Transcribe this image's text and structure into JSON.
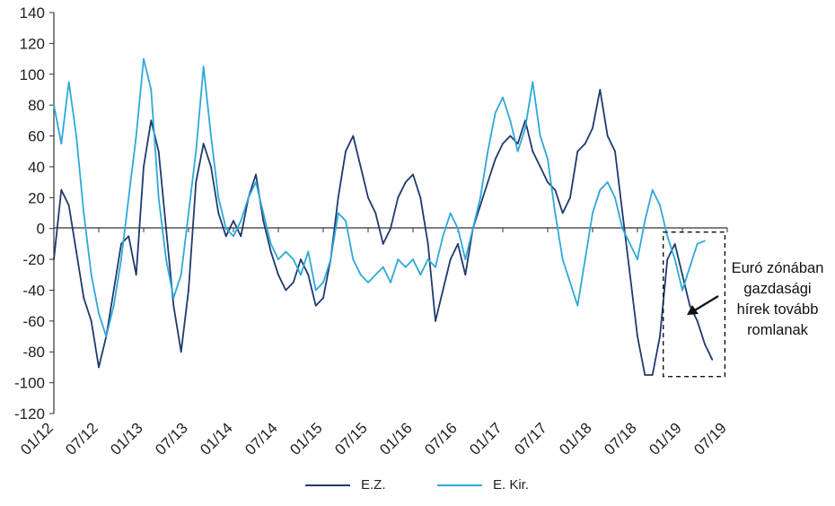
{
  "chart_data": {
    "type": "line",
    "title": "",
    "xlabel": "",
    "ylabel": "",
    "ylim": [
      -120,
      140
    ],
    "yticks": [
      -120,
      -100,
      -80,
      -60,
      -40,
      -20,
      0,
      20,
      40,
      60,
      80,
      100,
      120,
      140
    ],
    "xticks": [
      "01/12",
      "07/12",
      "01/13",
      "07/13",
      "01/14",
      "07/14",
      "01/15",
      "07/15",
      "01/16",
      "07/16",
      "01/17",
      "07/17",
      "01/18",
      "07/18",
      "01/19",
      "07/19"
    ],
    "grid": false,
    "legend": "bottom",
    "series": [
      {
        "name": "E.Z.",
        "color": "#1f3a6e",
        "points": [
          [
            "01/12",
            -20
          ],
          [
            "02/12",
            25
          ],
          [
            "03/12",
            15
          ],
          [
            "04/12",
            -15
          ],
          [
            "05/12",
            -45
          ],
          [
            "06/12",
            -60
          ],
          [
            "07/12",
            -90
          ],
          [
            "08/12",
            -70
          ],
          [
            "09/12",
            -40
          ],
          [
            "10/12",
            -10
          ],
          [
            "11/12",
            -5
          ],
          [
            "12/12",
            -30
          ],
          [
            "01/13",
            40
          ],
          [
            "02/13",
            70
          ],
          [
            "03/13",
            50
          ],
          [
            "04/13",
            0
          ],
          [
            "05/13",
            -50
          ],
          [
            "06/13",
            -80
          ],
          [
            "07/13",
            -40
          ],
          [
            "08/13",
            30
          ],
          [
            "09/13",
            55
          ],
          [
            "10/13",
            40
          ],
          [
            "11/13",
            10
          ],
          [
            "12/13",
            -5
          ],
          [
            "01/14",
            5
          ],
          [
            "02/14",
            -5
          ],
          [
            "03/14",
            20
          ],
          [
            "04/14",
            35
          ],
          [
            "05/14",
            5
          ],
          [
            "06/14",
            -15
          ],
          [
            "07/14",
            -30
          ],
          [
            "08/14",
            -40
          ],
          [
            "09/14",
            -35
          ],
          [
            "10/14",
            -20
          ],
          [
            "11/14",
            -30
          ],
          [
            "12/14",
            -50
          ],
          [
            "01/15",
            -45
          ],
          [
            "02/15",
            -20
          ],
          [
            "03/15",
            20
          ],
          [
            "04/15",
            50
          ],
          [
            "05/15",
            60
          ],
          [
            "06/15",
            40
          ],
          [
            "07/15",
            20
          ],
          [
            "08/15",
            10
          ],
          [
            "09/15",
            -10
          ],
          [
            "10/15",
            0
          ],
          [
            "11/15",
            20
          ],
          [
            "12/15",
            30
          ],
          [
            "01/16",
            35
          ],
          [
            "02/16",
            20
          ],
          [
            "03/16",
            -10
          ],
          [
            "04/16",
            -60
          ],
          [
            "05/16",
            -40
          ],
          [
            "06/16",
            -20
          ],
          [
            "07/16",
            -10
          ],
          [
            "08/16",
            -30
          ],
          [
            "09/16",
            0
          ],
          [
            "10/16",
            15
          ],
          [
            "11/16",
            30
          ],
          [
            "12/16",
            45
          ],
          [
            "01/17",
            55
          ],
          [
            "02/17",
            60
          ],
          [
            "03/17",
            55
          ],
          [
            "04/17",
            70
          ],
          [
            "05/17",
            50
          ],
          [
            "06/17",
            40
          ],
          [
            "07/17",
            30
          ],
          [
            "08/17",
            25
          ],
          [
            "09/17",
            10
          ],
          [
            "10/17",
            20
          ],
          [
            "11/17",
            50
          ],
          [
            "12/17",
            55
          ],
          [
            "01/18",
            65
          ],
          [
            "02/18",
            90
          ],
          [
            "03/18",
            60
          ],
          [
            "04/18",
            50
          ],
          [
            "05/18",
            10
          ],
          [
            "06/18",
            -30
          ],
          [
            "07/18",
            -70
          ],
          [
            "08/18",
            -95
          ],
          [
            "09/18",
            -95
          ],
          [
            "10/18",
            -70
          ],
          [
            "11/18",
            -20
          ],
          [
            "12/18",
            -10
          ],
          [
            "01/19",
            -30
          ],
          [
            "02/19",
            -50
          ],
          [
            "03/19",
            -60
          ],
          [
            "04/19",
            -75
          ],
          [
            "05/19",
            -85
          ]
        ]
      },
      {
        "name": "E. Kir.",
        "color": "#2ea8da",
        "points": [
          [
            "01/12",
            80
          ],
          [
            "02/12",
            55
          ],
          [
            "03/12",
            95
          ],
          [
            "04/12",
            60
          ],
          [
            "05/12",
            10
          ],
          [
            "06/12",
            -30
          ],
          [
            "07/12",
            -55
          ],
          [
            "08/12",
            -70
          ],
          [
            "09/12",
            -50
          ],
          [
            "10/12",
            -20
          ],
          [
            "11/12",
            20
          ],
          [
            "12/12",
            60
          ],
          [
            "01/13",
            110
          ],
          [
            "02/13",
            90
          ],
          [
            "03/13",
            20
          ],
          [
            "04/13",
            -20
          ],
          [
            "05/13",
            -45
          ],
          [
            "06/13",
            -30
          ],
          [
            "07/13",
            10
          ],
          [
            "08/13",
            50
          ],
          [
            "09/13",
            105
          ],
          [
            "10/13",
            60
          ],
          [
            "11/13",
            20
          ],
          [
            "12/13",
            0
          ],
          [
            "01/14",
            -5
          ],
          [
            "02/14",
            5
          ],
          [
            "03/14",
            20
          ],
          [
            "04/14",
            30
          ],
          [
            "05/14",
            10
          ],
          [
            "06/14",
            -10
          ],
          [
            "07/14",
            -20
          ],
          [
            "08/14",
            -15
          ],
          [
            "09/14",
            -20
          ],
          [
            "10/14",
            -30
          ],
          [
            "11/14",
            -15
          ],
          [
            "12/14",
            -40
          ],
          [
            "01/15",
            -35
          ],
          [
            "02/15",
            -20
          ],
          [
            "03/15",
            10
          ],
          [
            "04/15",
            5
          ],
          [
            "05/15",
            -20
          ],
          [
            "06/15",
            -30
          ],
          [
            "07/15",
            -35
          ],
          [
            "08/15",
            -30
          ],
          [
            "09/15",
            -25
          ],
          [
            "10/15",
            -35
          ],
          [
            "11/15",
            -20
          ],
          [
            "12/15",
            -25
          ],
          [
            "01/16",
            -20
          ],
          [
            "02/16",
            -30
          ],
          [
            "03/16",
            -20
          ],
          [
            "04/16",
            -25
          ],
          [
            "05/16",
            -5
          ],
          [
            "06/16",
            10
          ],
          [
            "07/16",
            0
          ],
          [
            "08/16",
            -20
          ],
          [
            "09/16",
            0
          ],
          [
            "10/16",
            20
          ],
          [
            "11/16",
            50
          ],
          [
            "12/16",
            75
          ],
          [
            "01/17",
            85
          ],
          [
            "02/17",
            70
          ],
          [
            "03/17",
            50
          ],
          [
            "04/17",
            65
          ],
          [
            "05/17",
            95
          ],
          [
            "06/17",
            60
          ],
          [
            "07/17",
            45
          ],
          [
            "08/17",
            10
          ],
          [
            "09/17",
            -20
          ],
          [
            "10/17",
            -35
          ],
          [
            "11/17",
            -50
          ],
          [
            "12/17",
            -20
          ],
          [
            "01/18",
            10
          ],
          [
            "02/18",
            25
          ],
          [
            "03/18",
            30
          ],
          [
            "04/18",
            20
          ],
          [
            "05/18",
            0
          ],
          [
            "06/18",
            -10
          ],
          [
            "07/18",
            -20
          ],
          [
            "08/18",
            5
          ],
          [
            "09/18",
            25
          ],
          [
            "10/18",
            15
          ],
          [
            "11/18",
            -5
          ],
          [
            "12/18",
            -20
          ],
          [
            "01/19",
            -40
          ],
          [
            "02/19",
            -25
          ],
          [
            "03/19",
            -10
          ],
          [
            "04/19",
            -8
          ]
        ]
      }
    ],
    "annotation": {
      "lines": [
        "Euró zónában",
        "gazdasági",
        "hírek tovább",
        "romlanak"
      ],
      "box_x_range": [
        "09/18",
        "05/19"
      ],
      "box_y_range": [
        -96,
        0
      ]
    }
  }
}
